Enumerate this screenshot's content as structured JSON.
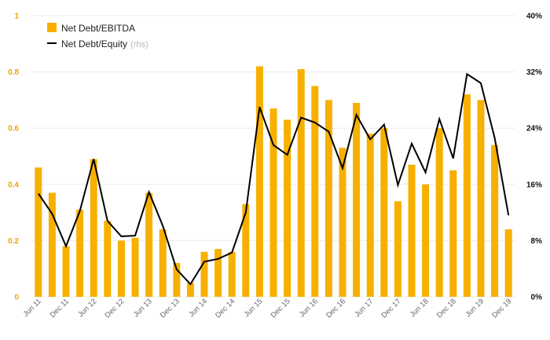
{
  "chart_data": {
    "type": "bar",
    "x_ticks": [
      "Jun 11",
      "Dec 11",
      "Jun 12",
      "Dec 12",
      "Jun 13",
      "Dec 13",
      "Jun 14",
      "Dec 14",
      "Jun 15",
      "Dec 15",
      "Jun 16",
      "Dec 16",
      "Jun 17",
      "Dec 17",
      "Jun 18",
      "Dec 18",
      "Jun 19",
      "Dec 19"
    ],
    "y_left": {
      "ticks": [
        "0",
        "0.2",
        "0.4",
        "0.6",
        "0.8",
        "1"
      ],
      "ylim": [
        0,
        1
      ]
    },
    "y_right": {
      "ticks": [
        "0%",
        "8%",
        "16%",
        "24%",
        "32%",
        "40%"
      ],
      "ylim": [
        0,
        40
      ]
    },
    "legend": [
      {
        "label": "Net Debt/EBITDA",
        "suffix": "",
        "kind": "bar",
        "color": "#f7b000"
      },
      {
        "label": "Net Debt/Equity",
        "suffix": "(rhs)",
        "kind": "line",
        "color": "#000000"
      }
    ],
    "series": [
      {
        "name": "Net Debt/EBITDA",
        "type": "bar",
        "axis": "left",
        "color": "#f7b000",
        "values": [
          0.46,
          0.37,
          0.18,
          0.31,
          0.49,
          0.27,
          0.2,
          0.21,
          0.37,
          0.24,
          0.12,
          0.05,
          0.16,
          0.17,
          0.16,
          0.33,
          0.82,
          0.67,
          0.63,
          0.81,
          0.75,
          0.7,
          0.53,
          0.69,
          0.58,
          0.6,
          0.34,
          0.47,
          0.4,
          0.6,
          0.45,
          0.72,
          0.7,
          0.54,
          0.24
        ]
      },
      {
        "name": "Net Debt/Equity",
        "type": "line",
        "axis": "right",
        "color": "#000000",
        "values": [
          14.7,
          11.8,
          7.2,
          12.2,
          19.6,
          10.8,
          8.6,
          8.7,
          14.9,
          10.1,
          3.9,
          1.8,
          5.0,
          5.4,
          6.3,
          12.0,
          27.0,
          21.6,
          20.2,
          25.5,
          24.8,
          23.5,
          18.3,
          25.9,
          22.4,
          24.5,
          15.9,
          21.8,
          17.7,
          25.3,
          19.7,
          31.7,
          30.4,
          22.6,
          11.6
        ]
      }
    ]
  }
}
